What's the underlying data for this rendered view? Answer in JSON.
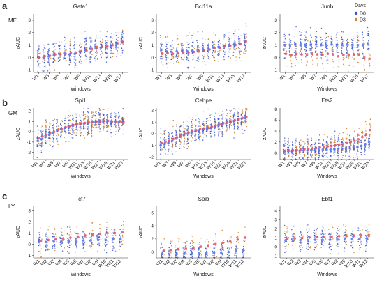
{
  "rows": [
    {
      "letter": "a",
      "group": "ME"
    },
    {
      "letter": "b",
      "group": "GM"
    },
    {
      "letter": "c",
      "group": "LY"
    }
  ],
  "legend": {
    "title": "Days",
    "items": [
      {
        "label": "D0",
        "color": "#3a55c9"
      },
      {
        "label": "D3",
        "color": "#d4862e"
      }
    ]
  },
  "colors": {
    "d0": "#3a55c9",
    "d3": "#d4862e",
    "mean_d0": "#5577ee",
    "mean_d3": "#e0506a"
  },
  "chart_data": [
    {
      "type": "scatter",
      "title": "Gata1",
      "xlabel": "Windows",
      "ylabel": "zAUC",
      "windows": 17,
      "ylim": [
        -1.2,
        3.5
      ],
      "yticks": [
        -1,
        0,
        1,
        2,
        3
      ],
      "xtick_labels": [
        "W1",
        "W3",
        "W5",
        "W7",
        "W9",
        "W11",
        "W13",
        "W15",
        "W17"
      ],
      "series": [
        {
          "name": "D0",
          "means": [
            0.05,
            0.0,
            0.08,
            0.2,
            0.3,
            0.35,
            0.25,
            0.3,
            0.45,
            0.6,
            0.7,
            0.75,
            0.8,
            0.85,
            0.95,
            1.1,
            1.3
          ]
        },
        {
          "name": "D3",
          "means": [
            0.0,
            0.1,
            0.15,
            0.25,
            0.25,
            0.3,
            0.35,
            0.35,
            0.5,
            0.55,
            0.7,
            0.8,
            0.85,
            0.9,
            1.0,
            1.15,
            1.25
          ]
        }
      ]
    },
    {
      "type": "scatter",
      "title": "Bcl11a",
      "xlabel": "Windows",
      "ylabel": "zAUC",
      "windows": 17,
      "ylim": [
        -1.2,
        3.5
      ],
      "yticks": [
        -1,
        0,
        1,
        2,
        3
      ],
      "xtick_labels": [
        "W1",
        "W3",
        "W5",
        "W7",
        "W9",
        "W11",
        "W13",
        "W15",
        "W17"
      ],
      "series": [
        {
          "name": "D0",
          "means": [
            0.6,
            0.5,
            0.45,
            0.5,
            0.55,
            0.5,
            0.55,
            0.6,
            0.65,
            0.7,
            0.8,
            0.85,
            0.9,
            1.0,
            1.05,
            1.15,
            1.35
          ]
        },
        {
          "name": "D3",
          "means": [
            0.3,
            0.35,
            0.3,
            0.35,
            0.4,
            0.4,
            0.45,
            0.5,
            0.55,
            0.65,
            0.75,
            0.8,
            0.9,
            0.95,
            1.0,
            1.1,
            1.3
          ]
        }
      ]
    },
    {
      "type": "scatter",
      "title": "Junb",
      "xlabel": "Windows",
      "ylabel": "zAUC",
      "windows": 17,
      "ylim": [
        -1.2,
        3.5
      ],
      "yticks": [
        -1,
        0,
        1,
        2,
        3
      ],
      "xtick_labels": [
        "W1",
        "W3",
        "W5",
        "W7",
        "W9",
        "W11",
        "W13",
        "W15",
        "W17"
      ],
      "series": [
        {
          "name": "D0",
          "means": [
            1.0,
            1.0,
            1.05,
            1.0,
            1.0,
            1.0,
            1.05,
            1.0,
            1.0,
            1.05,
            1.0,
            1.0,
            1.05,
            1.0,
            1.0,
            1.0,
            1.05
          ]
        },
        {
          "name": "D3",
          "means": [
            0.3,
            0.2,
            0.3,
            0.25,
            0.2,
            0.3,
            0.25,
            0.2,
            0.3,
            0.25,
            0.1,
            0.2,
            0.2,
            0.25,
            0.2,
            0.0,
            -0.1
          ]
        }
      ]
    },
    {
      "type": "scatter",
      "title": "Spi1",
      "xlabel": "Windows",
      "ylabel": "zAUC",
      "windows": 23,
      "ylim": [
        -2.7,
        2.3
      ],
      "yticks": [
        -2,
        -1,
        0,
        1,
        2
      ],
      "xtick_labels": [
        "W1",
        "W3",
        "W5",
        "W7",
        "W9",
        "W11",
        "W13",
        "W15",
        "W17",
        "W19",
        "W21",
        "W23"
      ],
      "series": [
        {
          "name": "D0",
          "means": [
            -0.9,
            -0.7,
            -0.5,
            -0.3,
            -0.1,
            0.1,
            0.25,
            0.4,
            0.5,
            0.6,
            0.7,
            0.75,
            0.8,
            0.85,
            0.9,
            0.95,
            1.0,
            1.0,
            1.0,
            1.0,
            1.0,
            0.95,
            0.95
          ]
        },
        {
          "name": "D3",
          "means": [
            -0.6,
            -0.45,
            -0.3,
            -0.15,
            0.0,
            0.15,
            0.3,
            0.45,
            0.55,
            0.65,
            0.75,
            0.8,
            0.85,
            0.9,
            0.95,
            1.0,
            1.0,
            1.05,
            1.05,
            1.0,
            1.0,
            1.0,
            0.95
          ]
        }
      ]
    },
    {
      "type": "scatter",
      "title": "Cebpe",
      "xlabel": "Windows",
      "ylabel": "zAUC",
      "windows": 23,
      "ylim": [
        -2.2,
        2.2
      ],
      "yticks": [
        -2,
        -1,
        0,
        1,
        2
      ],
      "xtick_labels": [
        "W1",
        "W3",
        "W5",
        "W7",
        "W9",
        "W11",
        "W13",
        "W15",
        "W17",
        "W19",
        "W21",
        "W23"
      ],
      "series": [
        {
          "name": "D0",
          "means": [
            -1.0,
            -0.9,
            -0.8,
            -0.6,
            -0.4,
            -0.25,
            -0.1,
            0.0,
            0.1,
            0.2,
            0.3,
            0.4,
            0.45,
            0.5,
            0.6,
            0.7,
            0.8,
            0.9,
            1.0,
            1.1,
            1.2,
            1.3,
            1.4
          ]
        },
        {
          "name": "D3",
          "means": [
            -0.8,
            -0.7,
            -0.6,
            -0.45,
            -0.3,
            -0.15,
            0.0,
            0.1,
            0.2,
            0.3,
            0.4,
            0.45,
            0.5,
            0.6,
            0.7,
            0.8,
            0.9,
            1.0,
            1.05,
            1.15,
            1.25,
            1.35,
            1.45
          ]
        }
      ]
    },
    {
      "type": "scatter",
      "title": "Ets2",
      "xlabel": "Windows",
      "ylabel": "zAUC",
      "windows": 23,
      "ylim": [
        -1.2,
        8.2
      ],
      "yticks": [
        0,
        2,
        4,
        6,
        8
      ],
      "xtick_labels": [
        "W1",
        "W3",
        "W5",
        "W7",
        "W9",
        "W11",
        "W13",
        "W15",
        "W17",
        "W19",
        "W21",
        "W23"
      ],
      "series": [
        {
          "name": "D0",
          "means": [
            0.3,
            0.35,
            0.35,
            0.4,
            0.4,
            0.45,
            0.45,
            0.5,
            0.5,
            0.55,
            0.6,
            0.6,
            0.65,
            0.7,
            0.75,
            0.8,
            0.85,
            0.9,
            1.0,
            1.1,
            1.3,
            1.6,
            2.0
          ]
        },
        {
          "name": "D3",
          "means": [
            0.4,
            0.45,
            0.5,
            0.55,
            0.6,
            0.7,
            0.75,
            0.8,
            0.9,
            1.0,
            1.1,
            1.2,
            1.3,
            1.4,
            1.5,
            1.6,
            1.8,
            2.0,
            2.2,
            2.5,
            2.9,
            3.4,
            4.2
          ]
        }
      ]
    },
    {
      "type": "scatter",
      "title": "Tcf7",
      "xlabel": "Windows",
      "ylabel": "zAUC",
      "windows": 12,
      "ylim": [
        -1.2,
        3.4
      ],
      "yticks": [
        -1,
        0,
        1,
        2,
        3
      ],
      "xtick_labels": [
        "W1",
        "W2",
        "W3",
        "W4",
        "W5",
        "W6",
        "W7",
        "W8",
        "W9",
        "W10",
        "W11",
        "W12"
      ],
      "series": [
        {
          "name": "D0",
          "means": [
            0.2,
            0.2,
            0.25,
            0.25,
            0.3,
            0.3,
            0.35,
            0.35,
            0.4,
            0.4,
            0.45,
            0.5
          ]
        },
        {
          "name": "D3",
          "means": [
            0.3,
            0.4,
            0.45,
            0.5,
            0.6,
            0.7,
            0.8,
            0.9,
            0.95,
            1.0,
            1.0,
            1.1
          ]
        }
      ]
    },
    {
      "type": "scatter",
      "title": "Spib",
      "xlabel": "Windows",
      "ylabel": "zAUC",
      "windows": 12,
      "ylim": [
        -0.9,
        7.0
      ],
      "yticks": [
        0,
        2,
        4,
        6
      ],
      "xtick_labels": [
        "W1",
        "W2",
        "W3",
        "W4",
        "W5",
        "W6",
        "W7",
        "W8",
        "W9",
        "W10",
        "W11",
        "W12"
      ],
      "series": [
        {
          "name": "D0",
          "means": [
            -0.3,
            -0.3,
            -0.3,
            -0.25,
            -0.25,
            -0.2,
            -0.2,
            -0.15,
            -0.1,
            0.0,
            0.1,
            0.2
          ]
        },
        {
          "name": "D3",
          "means": [
            0.2,
            0.3,
            0.4,
            0.5,
            0.6,
            0.8,
            1.0,
            1.2,
            1.4,
            1.6,
            1.9,
            2.2
          ]
        }
      ]
    },
    {
      "type": "scatter",
      "title": "Ebf1",
      "xlabel": "Windows",
      "ylabel": "zAUC",
      "windows": 12,
      "ylim": [
        -1.2,
        4.5
      ],
      "yticks": [
        -1,
        0,
        1,
        2,
        3,
        4
      ],
      "xtick_labels": [
        "W1",
        "W2",
        "W3",
        "W4",
        "W5",
        "W6",
        "W7",
        "W8",
        "W9",
        "W10",
        "W11",
        "W12"
      ],
      "series": [
        {
          "name": "D0",
          "means": [
            0.7,
            0.7,
            0.75,
            0.75,
            0.8,
            0.8,
            0.8,
            0.85,
            0.85,
            0.9,
            0.9,
            0.95
          ]
        },
        {
          "name": "D3",
          "means": [
            0.9,
            0.95,
            1.0,
            1.05,
            1.1,
            1.1,
            1.15,
            1.2,
            1.2,
            1.25,
            1.3,
            1.3
          ]
        }
      ]
    }
  ]
}
